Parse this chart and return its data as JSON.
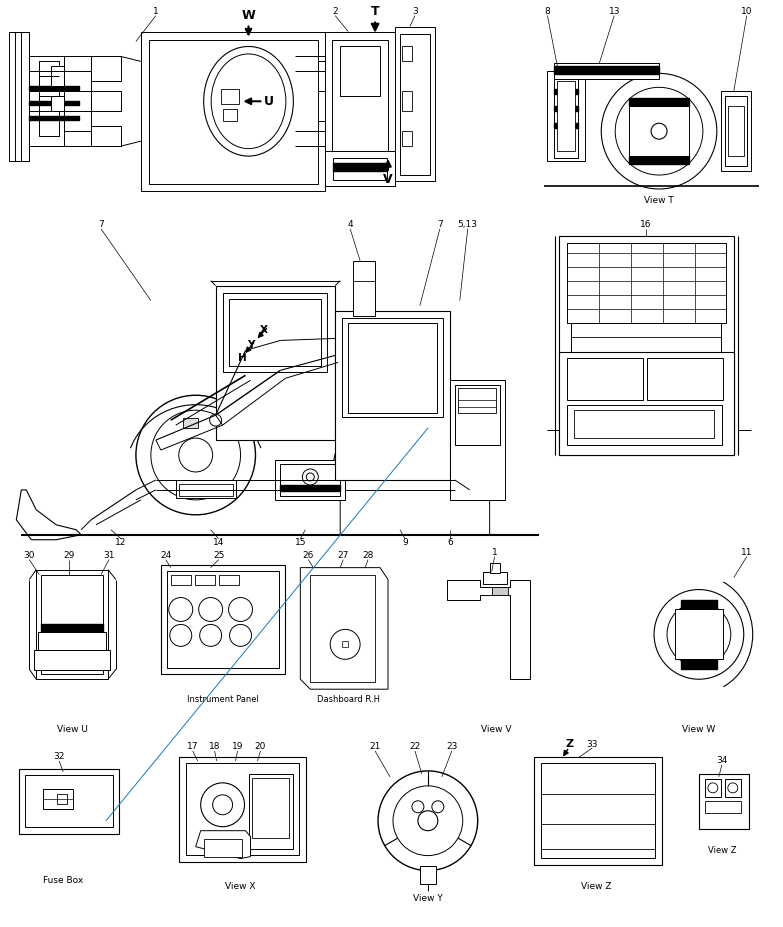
{
  "bg_color": "#ffffff",
  "line_color": "#000000",
  "fig_width": 7.83,
  "fig_height": 9.27,
  "dpi": 100,
  "labels": {
    "view_T": "View T",
    "view_U": "View U",
    "view_V": "View V",
    "view_W": "View W",
    "view_X": "View X",
    "view_Y": "View Y",
    "view_Z": "View Z",
    "instrument_panel": "Instrument Panel",
    "dashboard_rh": "Dashboard R.H",
    "fuse_box": "Fuse Box"
  }
}
